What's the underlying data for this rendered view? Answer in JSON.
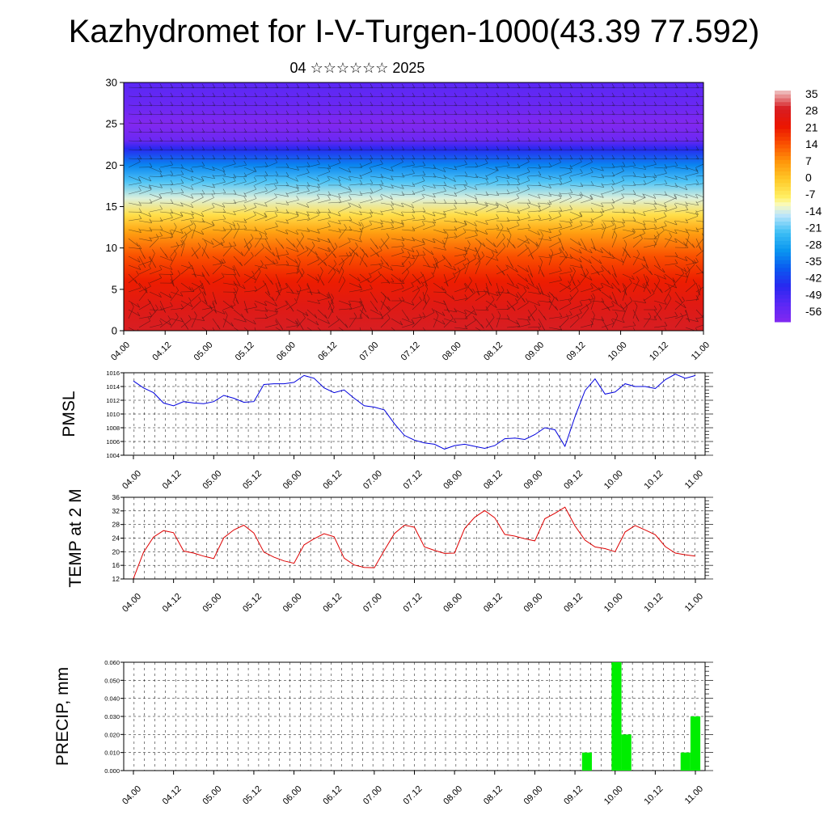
{
  "header": {
    "title": "Kazhydromet for I-V-Turgen-1000(43.39 77.592)",
    "subtitle": "04 ☆☆☆☆☆☆ 2025"
  },
  "time_ticks": [
    "04.00",
    "04.12",
    "05.00",
    "05.12",
    "06.00",
    "06.12",
    "07.00",
    "07.12",
    "08.00",
    "08.12",
    "09.00",
    "09.12",
    "10.00",
    "10.12",
    "11.00"
  ],
  "colorbar": {
    "labels": [
      "35",
      "28",
      "21",
      "14",
      "7",
      "0",
      "-7",
      "-14",
      "-21",
      "-28",
      "-35",
      "-42",
      "-49",
      "-56"
    ]
  },
  "chart_data": [
    {
      "type": "heatmap",
      "title": "",
      "xlabel": "",
      "ylabel": "",
      "ylim": [
        0,
        30
      ],
      "yticks": [
        0,
        5,
        10,
        15,
        20,
        25,
        30
      ],
      "x_range": [
        "04.00",
        "11.00"
      ],
      "field_range": [
        -56,
        35
      ],
      "vertical_profile": [
        {
          "y": 0,
          "value": 28
        },
        {
          "y": 3,
          "value": 25
        },
        {
          "y": 6,
          "value": 20
        },
        {
          "y": 9,
          "value": 14
        },
        {
          "y": 12,
          "value": 5
        },
        {
          "y": 14,
          "value": -4
        },
        {
          "y": 16,
          "value": -12
        },
        {
          "y": 18,
          "value": -20
        },
        {
          "y": 20,
          "value": -30
        },
        {
          "y": 22,
          "value": -42
        },
        {
          "y": 23,
          "value": -52
        },
        {
          "y": 25,
          "value": -56
        },
        {
          "y": 27,
          "value": -52
        },
        {
          "y": 30,
          "value": -49
        }
      ],
      "overlay": "wind barbs"
    },
    {
      "type": "line",
      "ylabel": "PMSL",
      "ylim": [
        1004,
        1016
      ],
      "yticks": [
        1004,
        1006,
        1008,
        1010,
        1012,
        1014,
        1016
      ],
      "color": "#0000dd",
      "grid": true,
      "x_step_hours": 3,
      "values": [
        1014.8,
        1013.8,
        1013.1,
        1011.6,
        1011.2,
        1011.8,
        1011.6,
        1011.5,
        1011.8,
        1012.7,
        1012.3,
        1011.7,
        1011.8,
        1014.3,
        1014.4,
        1014.4,
        1014.6,
        1015.6,
        1015.2,
        1013.8,
        1013.1,
        1013.5,
        1012.3,
        1011.2,
        1011.0,
        1010.6,
        1008.6,
        1006.9,
        1006.2,
        1005.8,
        1005.6,
        1004.9,
        1005.4,
        1005.6,
        1005.3,
        1005.0,
        1005.4,
        1006.4,
        1006.5,
        1006.3,
        1007.0,
        1008.0,
        1007.7,
        1005.3,
        1009.6,
        1013.4,
        1015.1,
        1012.9,
        1013.2,
        1014.4,
        1014.0,
        1014.0,
        1013.7,
        1015.0,
        1015.8,
        1015.2,
        1015.6
      ]
    },
    {
      "type": "line",
      "ylabel": "TEMP at 2 M",
      "ylim": [
        12,
        36
      ],
      "yticks": [
        12,
        16,
        20,
        24,
        28,
        32,
        36
      ],
      "color": "#dd0000",
      "grid": true,
      "x_step_hours": 3,
      "values": [
        12.1,
        19.8,
        24.3,
        26.2,
        25.6,
        20.2,
        19.6,
        18.7,
        18.0,
        24.1,
        26.4,
        27.8,
        25.5,
        19.9,
        18.4,
        17.3,
        16.6,
        22.0,
        23.8,
        25.3,
        24.4,
        18.1,
        16.1,
        15.4,
        15.3,
        20.4,
        25.3,
        27.8,
        27.2,
        21.4,
        20.4,
        19.5,
        19.6,
        26.8,
        30.1,
        32.1,
        30.0,
        25.1,
        24.6,
        23.8,
        23.2,
        29.7,
        31.3,
        33.1,
        27.6,
        23.4,
        21.4,
        20.9,
        20.0,
        25.8,
        27.7,
        26.4,
        25.0,
        21.5,
        19.6,
        19.1,
        18.7
      ]
    },
    {
      "type": "bar",
      "ylabel": "PRECIP, mm",
      "ylim": [
        0,
        0.06
      ],
      "yticks": [
        "0.000",
        "0.010",
        "0.020",
        "0.030",
        "0.040",
        "0.050",
        "0.060"
      ],
      "color": "#00ee00",
      "grid": true,
      "x_step_hours": 3,
      "values": [
        0,
        0,
        0,
        0,
        0,
        0,
        0,
        0,
        0,
        0,
        0,
        0,
        0,
        0,
        0,
        0,
        0,
        0,
        0,
        0,
        0,
        0,
        0,
        0,
        0,
        0,
        0,
        0,
        0,
        0,
        0,
        0,
        0,
        0,
        0,
        0,
        0,
        0,
        0,
        0,
        0,
        0,
        0,
        0,
        0,
        0,
        0.01,
        0,
        0,
        0.06,
        0.02,
        0,
        0,
        0,
        0,
        0,
        0.01,
        0.03
      ]
    }
  ]
}
